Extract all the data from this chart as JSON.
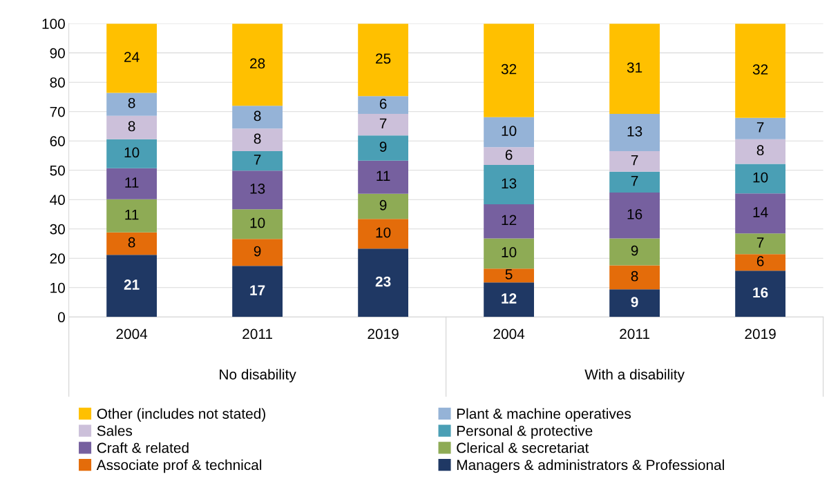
{
  "chart_data": {
    "type": "bar",
    "stacked": true,
    "categories": [
      "2004",
      "2011",
      "2019",
      "2004",
      "2011",
      "2019"
    ],
    "annotations": [
      "No disability",
      "With a disability"
    ],
    "series": [
      {
        "name": "Managers & administrators & Professional",
        "color": "#1f3864",
        "values": [
          21.2,
          17.4,
          23.3,
          11.8,
          9.4,
          15.8
        ],
        "value_labels": [
          "21",
          "17",
          "23",
          "12",
          "9",
          "16"
        ]
      },
      {
        "name": "Associate prof & technical",
        "color": "#e46c0a",
        "values": [
          7.6,
          9.2,
          10.1,
          4.7,
          8.2,
          5.6
        ],
        "value_labels": [
          "8",
          "9",
          "10",
          "5",
          "8",
          "6"
        ]
      },
      {
        "name": "Clerical & secretariat",
        "color": "#8eab55",
        "values": [
          11.3,
          10.1,
          8.6,
          10.3,
          9.2,
          7.1
        ],
        "value_labels": [
          "11",
          "10",
          "9",
          "10",
          "9",
          "7"
        ]
      },
      {
        "name": "Craft & related",
        "color": "#76609f",
        "values": [
          10.6,
          13.2,
          11.3,
          11.6,
          15.6,
          13.6
        ],
        "value_labels": [
          "11",
          "13",
          "11",
          "12",
          "16",
          "14"
        ]
      },
      {
        "name": "Personal & protective",
        "color": "#4a9fb5",
        "values": [
          9.9,
          6.6,
          8.6,
          13.4,
          7.1,
          10.1
        ],
        "value_labels": [
          "10",
          "7",
          "9",
          "13",
          "7",
          "10"
        ]
      },
      {
        "name": "Sales",
        "color": "#ccc0da",
        "values": [
          8.0,
          7.7,
          7.3,
          6.1,
          7.0,
          8.4
        ],
        "value_labels": [
          "8",
          "8",
          "7",
          "6",
          "7",
          "8"
        ]
      },
      {
        "name": "Plant & machine operatives",
        "color": "#95b3d7",
        "values": [
          7.8,
          7.8,
          6.1,
          10.2,
          12.7,
          7.3
        ],
        "value_labels": [
          "8",
          "8",
          "6",
          "10",
          "13",
          "7"
        ]
      },
      {
        "name": "Other (includes not stated)",
        "color": "#ffc000",
        "values": [
          23.6,
          28.0,
          24.7,
          31.9,
          30.8,
          32.1
        ],
        "value_labels": [
          "24",
          "28",
          "25",
          "32",
          "31",
          "32"
        ]
      }
    ],
    "ylim": [
      0,
      100
    ],
    "yticks": [
      0,
      10,
      20,
      30,
      40,
      50,
      60,
      70,
      80,
      90,
      100
    ],
    "grid": "y",
    "legend": "bottom"
  }
}
